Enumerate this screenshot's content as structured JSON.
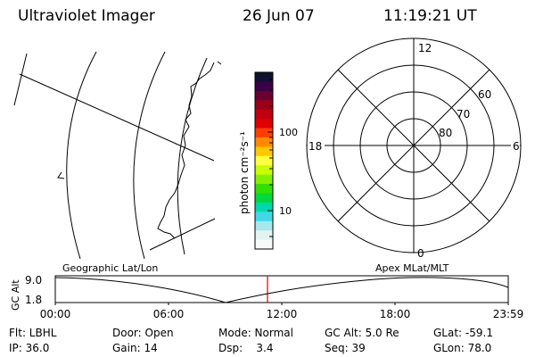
{
  "header": {
    "instrument": "Ultraviolet Imager",
    "date": "26 Jun 07",
    "time": "11:19:21 UT"
  },
  "colorbar": {
    "unit_label": "photon cm⁻²s⁻¹",
    "tick_labels": [
      "100",
      "10"
    ],
    "colors": [
      "#101030",
      "#3a0048",
      "#6a0030",
      "#9a0018",
      "#c00010",
      "#e00000",
      "#ff4000",
      "#ff8a00",
      "#ffc800",
      "#ffff40",
      "#c8ff00",
      "#80f000",
      "#30e000",
      "#00d840",
      "#00d8b0",
      "#40d8e8",
      "#a8e8ec",
      "#e4f2f2",
      "#f8fafa"
    ]
  },
  "polar": {
    "mlt_labels": {
      "top": "12",
      "left": "18",
      "right": "6",
      "bottom": "0"
    },
    "lat_labels": [
      "60",
      "70",
      "80"
    ]
  },
  "map_labels": {
    "left": "Geographic Lat/Lon",
    "right": "Apex MLat/MLT"
  },
  "altitude_plot": {
    "axis_title": "GC Alt",
    "y_ticks": [
      "9.0",
      "1.8"
    ],
    "x_ticks": [
      "00:00",
      "06:00",
      "12:00",
      "18:00",
      "23:59"
    ],
    "marker_color": "#e00000"
  },
  "footer": [
    [
      "Flt: LBHL",
      "Door: Open",
      "Mode: Normal",
      "GC Alt: 5.0 Re",
      "GLat: -59.1"
    ],
    [
      "IP: 36.0",
      "Gain: 14",
      "Dsp:    3.4",
      "Seq: 39",
      "GLon: 78.0"
    ]
  ]
}
